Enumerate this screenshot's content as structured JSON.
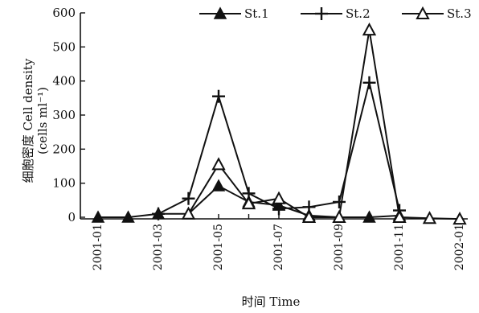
{
  "chart_data": {
    "type": "line",
    "ylabel": "细胞密度 Cell density",
    "ylabel_unit": "(cells ml⁻¹)",
    "xlabel": "时间 Time",
    "ylim": [
      0,
      600
    ],
    "yticks": [
      "0",
      "100",
      "200",
      "300",
      "400",
      "500",
      "600"
    ],
    "x_tick_labels": [
      "2001-01",
      "2001-03",
      "2001-05",
      "2001-07",
      "2001-09",
      "2001-11",
      "2002-01"
    ],
    "x": [
      "2001-01",
      "2001-02",
      "2001-03",
      "2001-04",
      "2001-05",
      "2001-06",
      "2001-07",
      "2001-08",
      "2001-09",
      "2001-10",
      "2001-11",
      "2001-12",
      "2002-01"
    ],
    "legend_position": "top",
    "series": [
      {
        "name": "St.1",
        "marker": "filled-triangle",
        "values": [
          0,
          0,
          10,
          10,
          92,
          45,
          35,
          5,
          0,
          0,
          5,
          null,
          null
        ]
      },
      {
        "name": "St.2",
        "marker": "plus",
        "values": [
          null,
          null,
          10,
          55,
          355,
          70,
          25,
          30,
          45,
          395,
          20,
          null,
          null
        ]
      },
      {
        "name": "St.3",
        "marker": "open-triangle",
        "values": [
          null,
          null,
          null,
          10,
          155,
          40,
          55,
          0,
          0,
          550,
          0,
          -3,
          -5
        ]
      }
    ]
  }
}
